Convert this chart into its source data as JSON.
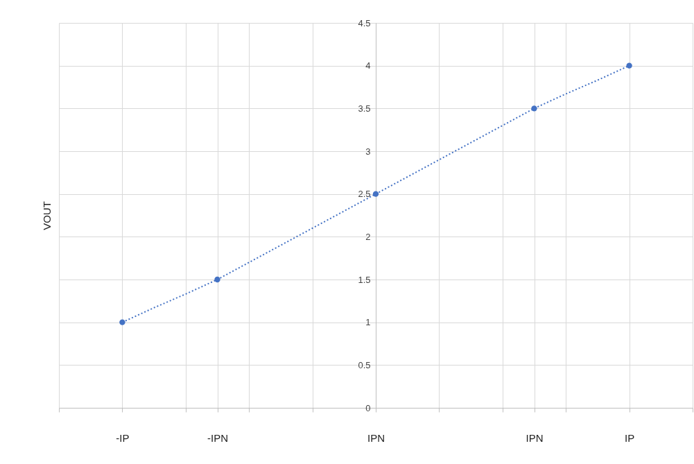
{
  "chart_data": {
    "type": "scatter",
    "ylabel": "VOUT",
    "categories": [
      null,
      null,
      "-IP",
      null,
      null,
      "-IPN",
      null,
      null,
      null,
      null,
      "IPN",
      null,
      null,
      null,
      null,
      "IPN",
      null,
      null,
      "IP",
      null,
      null
    ],
    "series": [
      {
        "color": "#4472c4",
        "values": [
          null,
          null,
          1,
          null,
          null,
          1.5,
          null,
          null,
          null,
          null,
          2.5,
          null,
          null,
          null,
          null,
          3.5,
          null,
          null,
          4,
          null,
          null
        ]
      },
      {
        "type": "line",
        "marker": "none",
        "color": "#4472c4",
        "values": [
          null,
          null,
          1,
          1.17,
          1.33,
          1.5,
          1.7,
          1.9,
          2.1,
          2.3,
          2.5,
          2.7,
          2.9,
          3.1,
          3.3,
          3.5,
          3.67,
          3.83,
          4,
          null,
          null
        ]
      }
    ],
    "ylim": [
      0,
      4.5
    ],
    "yticks": [
      0,
      0.5,
      1,
      1.5,
      2,
      2.5,
      3,
      3.5,
      4,
      4.5
    ],
    "grid": true,
    "marker": "circle",
    "line_style": "dotted"
  }
}
